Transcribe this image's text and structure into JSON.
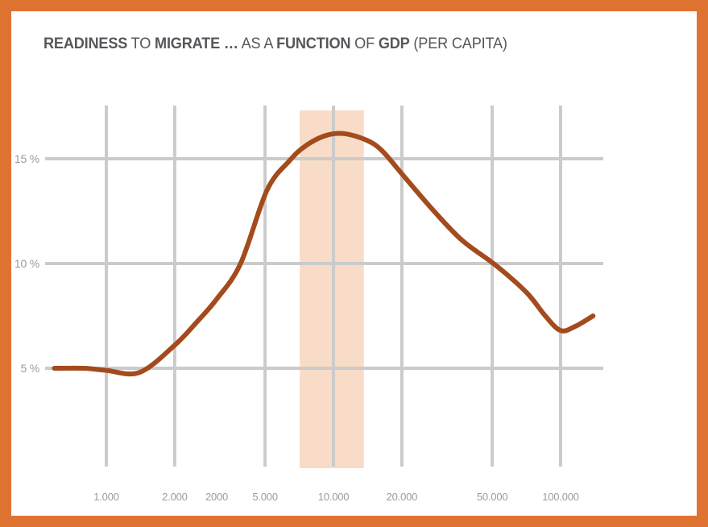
{
  "title": {
    "full_text": "READINESS TO MIGRATE … AS A FUNCTION OF GDP (PER CAPITA)",
    "segments": [
      {
        "text": "READINESS",
        "bold": true
      },
      {
        "text": " TO ",
        "bold": false
      },
      {
        "text": "MIGRATE …",
        "bold": true
      },
      {
        "text": " AS A ",
        "bold": false
      },
      {
        "text": "FUNCTION",
        "bold": true
      },
      {
        "text": " OF ",
        "bold": false
      },
      {
        "text": "GDP",
        "bold": true
      },
      {
        "text": " (PER CAPITA)",
        "bold": false
      }
    ]
  },
  "colors": {
    "frame_border": "#DF7432",
    "background": "#FFFFFF",
    "curve": "#A34B1D",
    "gridline": "#CBCBCB",
    "highlight_band": "#F8DCC7",
    "title_text": "#55575B",
    "axis_label": "#9B9B9D"
  },
  "chart_data": {
    "type": "line",
    "title": "READINESS TO MIGRATE … AS A FUNCTION OF GDP (PER CAPITA)",
    "x_axis": {
      "scale": "log",
      "range": [
        560,
        150000
      ],
      "grid": true,
      "ticks": [
        {
          "label": "1.000",
          "value": 1000,
          "gridline": true
        },
        {
          "label": "2.000",
          "value": 2000,
          "gridline": true
        },
        {
          "label": "2000",
          "value": 3060,
          "gridline": false
        },
        {
          "label": "5.000",
          "value": 5000,
          "gridline": true
        },
        {
          "label": "10.000",
          "value": 10000,
          "gridline": true
        },
        {
          "label": "20.000",
          "value": 20000,
          "gridline": true
        },
        {
          "label": "50.000",
          "value": 50000,
          "gridline": true
        },
        {
          "label": "100.000",
          "value": 100000,
          "gridline": true
        }
      ]
    },
    "y_axis": {
      "unit": "%",
      "range_shown": [
        5,
        15
      ],
      "grid": true,
      "ticks": [
        {
          "label": "5 %",
          "value": 5
        },
        {
          "label": "10 %",
          "value": 10
        },
        {
          "label": "15 %",
          "value": 15
        }
      ]
    },
    "highlight_band": {
      "from": 7100,
      "to": 13600
    },
    "series": [
      {
        "name": "readiness-to-migrate",
        "points": [
          [
            590,
            5.0
          ],
          [
            800,
            5.0
          ],
          [
            1000,
            4.9
          ],
          [
            1400,
            4.8
          ],
          [
            2000,
            6.1
          ],
          [
            2500,
            7.2
          ],
          [
            3060,
            8.3
          ],
          [
            3900,
            10.0
          ],
          [
            5100,
            13.5
          ],
          [
            6400,
            14.9
          ],
          [
            7500,
            15.6
          ],
          [
            9200,
            16.1
          ],
          [
            11100,
            16.2
          ],
          [
            13900,
            15.9
          ],
          [
            16300,
            15.4
          ],
          [
            20300,
            14.2
          ],
          [
            27700,
            12.5
          ],
          [
            36900,
            11.1
          ],
          [
            52000,
            9.9
          ],
          [
            71000,
            8.6
          ],
          [
            85600,
            7.5
          ],
          [
            100000,
            6.8
          ],
          [
            116000,
            7.0
          ],
          [
            139000,
            7.5
          ]
        ]
      }
    ]
  }
}
